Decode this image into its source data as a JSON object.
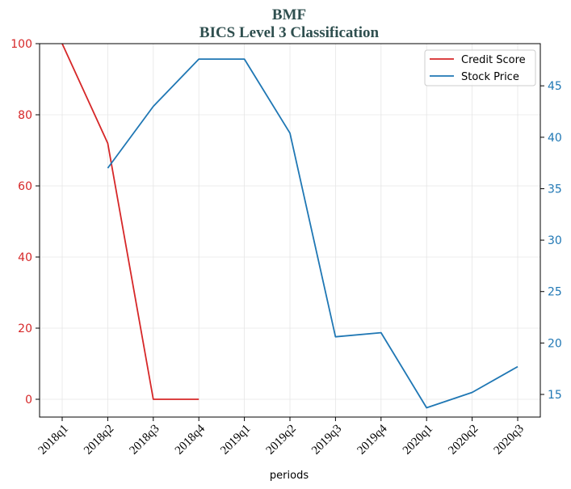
{
  "title_line1": "BMF",
  "title_line2": "BICS Level 3 Classification",
  "chart_data": {
    "type": "line",
    "title": "BMF\nBICS Level 3 Classification",
    "xlabel": "periods",
    "ylabel": "",
    "ylabel_right": "",
    "categories": [
      "2018q1",
      "2018q2",
      "2018q3",
      "2018q4",
      "2019q1",
      "2019q2",
      "2019q3",
      "2019q4",
      "2020q1",
      "2020q2",
      "2020q3"
    ],
    "ylim": [
      -5,
      100
    ],
    "yticks": [
      0,
      20,
      40,
      60,
      80,
      100
    ],
    "ylim_right": [
      12.8,
      49.1
    ],
    "yticks_right": [
      15,
      20,
      25,
      30,
      35,
      40,
      45
    ],
    "grid": true,
    "legend": "top-right",
    "series": [
      {
        "name": "Credit Score",
        "axis": "left",
        "color": "#d62728",
        "values": [
          100,
          72,
          0,
          0,
          null,
          null,
          null,
          null,
          null,
          null,
          null
        ]
      },
      {
        "name": "Stock Price",
        "axis": "right",
        "color": "#1f77b4",
        "values": [
          null,
          37.0,
          43.0,
          47.6,
          47.6,
          40.4,
          20.6,
          21.0,
          13.7,
          15.2,
          17.7
        ]
      }
    ]
  }
}
